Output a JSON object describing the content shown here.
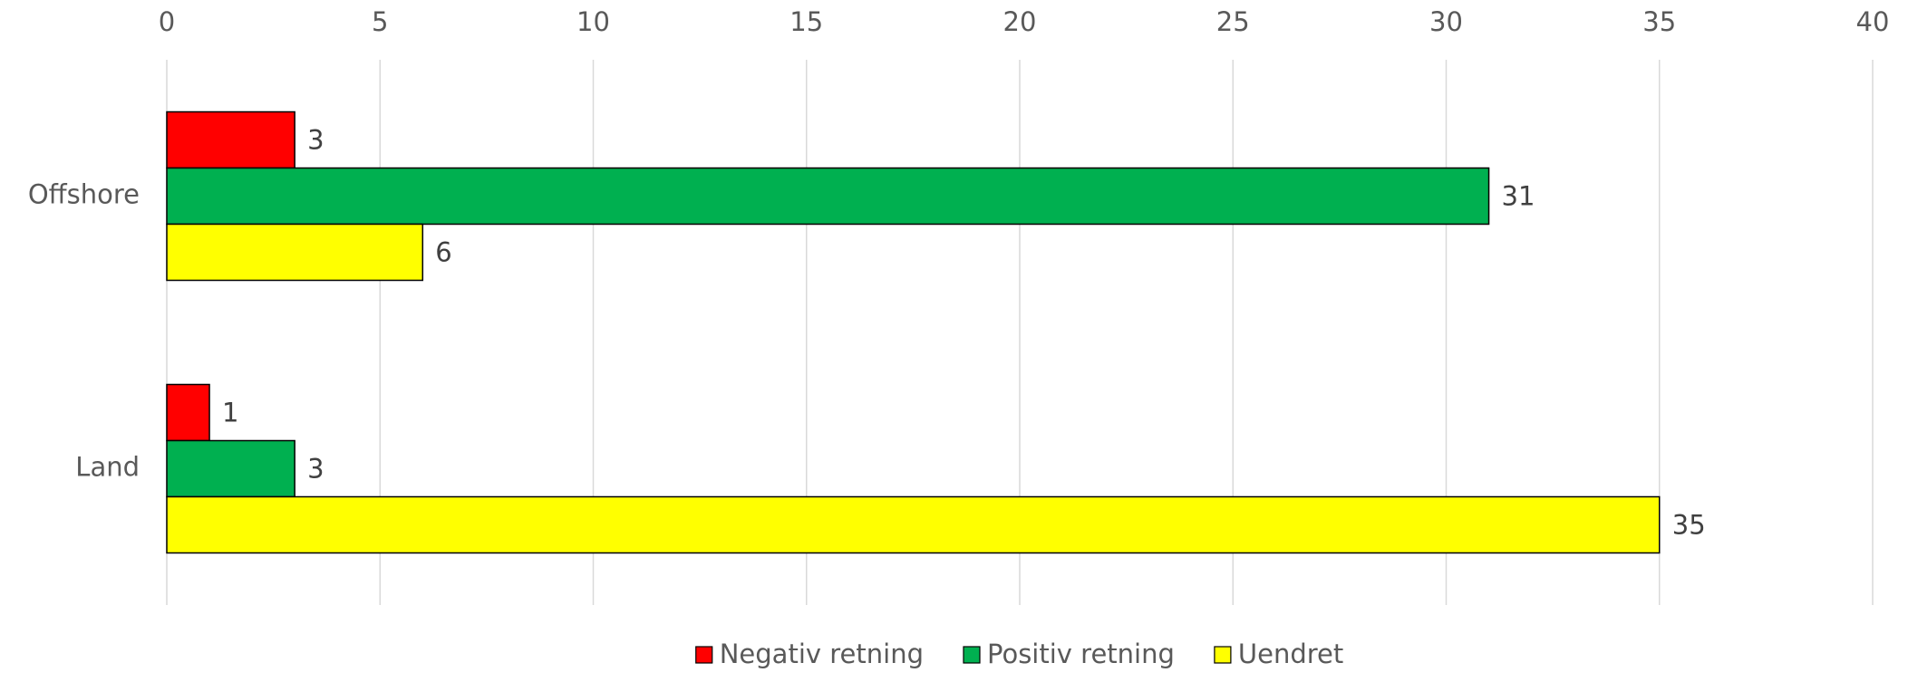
{
  "chart_data": {
    "type": "hbar",
    "categories": [
      "Offshore",
      "Land"
    ],
    "series": [
      {
        "name": "Negativ retning",
        "color": "#ff0000",
        "values": [
          3,
          1
        ]
      },
      {
        "name": "Positiv retning",
        "color": "#00b050",
        "values": [
          31,
          3
        ]
      },
      {
        "name": "Uendret",
        "color": "#ffff00",
        "values": [
          6,
          35
        ]
      }
    ],
    "xlim": [
      0,
      40
    ],
    "xticks": [
      0,
      5,
      10,
      15,
      20,
      25,
      30,
      35,
      40
    ],
    "grid": true,
    "legend": "bottom"
  }
}
